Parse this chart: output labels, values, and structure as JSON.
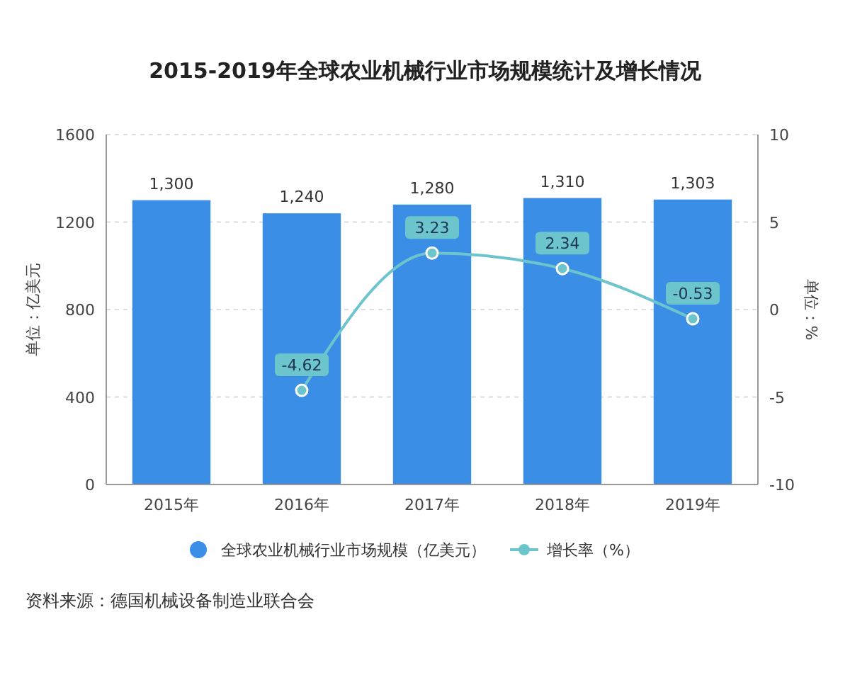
{
  "chart_data": {
    "type": "bar",
    "title": "2015-2019年全球农业机械行业市场规模统计及增长情况",
    "ylabel": "单位：亿美元",
    "y2label": "单位：%",
    "categories": [
      "2015年",
      "2016年",
      "2017年",
      "2018年",
      "2019年"
    ],
    "series": [
      {
        "name": "全球农业机械行业市场规模（亿美元）",
        "color": "#3a8ee6",
        "values": [
          1300,
          1240,
          1280,
          1310,
          1303
        ],
        "value_labels": [
          "1,300",
          "1,240",
          "1,280",
          "1,310",
          "1,303"
        ]
      },
      {
        "name": "增长率（%）",
        "type": "line",
        "axis": "y2",
        "color": "#6cc4cc",
        "values": [
          null,
          -4.62,
          3.23,
          2.34,
          -0.53
        ],
        "value_labels": [
          null,
          "-4.62",
          "3.23",
          "2.34",
          "-0.53"
        ]
      }
    ],
    "ylim": [
      0,
      1600
    ],
    "yticks": [
      0,
      400,
      800,
      1200,
      1600
    ],
    "y2lim": [
      -10,
      10
    ],
    "y2ticks": [
      -10,
      -5,
      0,
      5,
      10
    ],
    "grid": "y",
    "legend": "bottom",
    "marker": "circle",
    "annotations": [
      "资料来源：德国机械设备制造业联合会"
    ]
  }
}
